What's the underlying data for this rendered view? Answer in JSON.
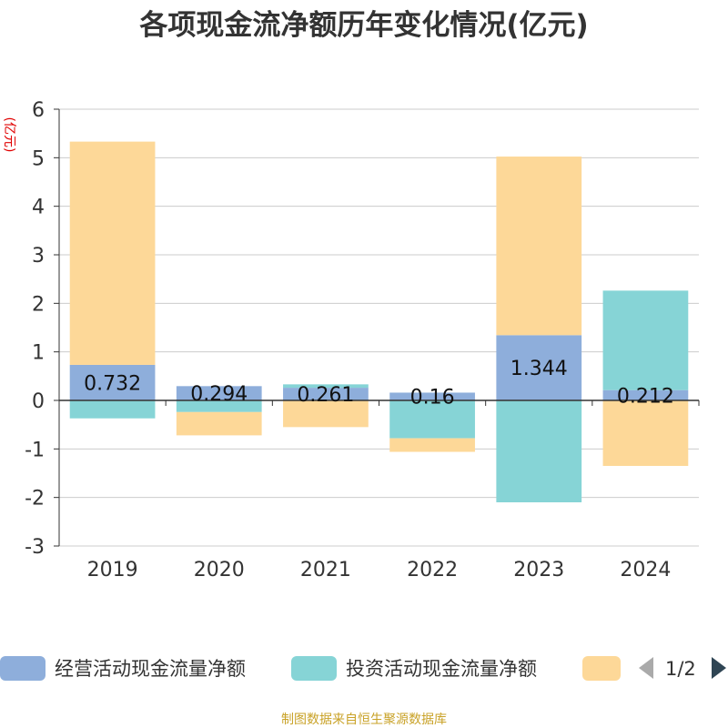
{
  "chart_data": {
    "type": "bar",
    "stacked": true,
    "title": "各项现金流净额历年变化情况(亿元)",
    "unit": "(亿元)",
    "categories": [
      "2019",
      "2020",
      "2021",
      "2022",
      "2023",
      "2024"
    ],
    "ylim": [
      -3,
      6
    ],
    "yticks": [
      -3,
      -2,
      -1,
      0,
      1,
      2,
      3,
      4,
      5,
      6
    ],
    "grid": true,
    "legend_position": "bottom",
    "series": [
      {
        "name": "经营活动现金流量净额",
        "color": "#8eaedb",
        "values": [
          0.732,
          0.294,
          0.261,
          0.16,
          1.344,
          0.212
        ],
        "labels": [
          "0.732",
          "0.294",
          "0.261",
          "0.16",
          "1.344",
          "0.212"
        ]
      },
      {
        "name": "投资活动现金流量净额",
        "color": "#86d4d6",
        "values": [
          -0.37,
          -0.24,
          0.07,
          -0.78,
          -2.1,
          2.05
        ]
      },
      {
        "name": "",
        "color": "#fdd898",
        "values": [
          4.6,
          -0.48,
          -0.55,
          -0.28,
          3.68,
          -1.35
        ]
      }
    ]
  },
  "legend": {
    "items": [
      "经营活动现金流量净额",
      "投资活动现金流量净额",
      ""
    ],
    "page": "1/2"
  },
  "source": "制图数据来自恒生聚源数据库"
}
